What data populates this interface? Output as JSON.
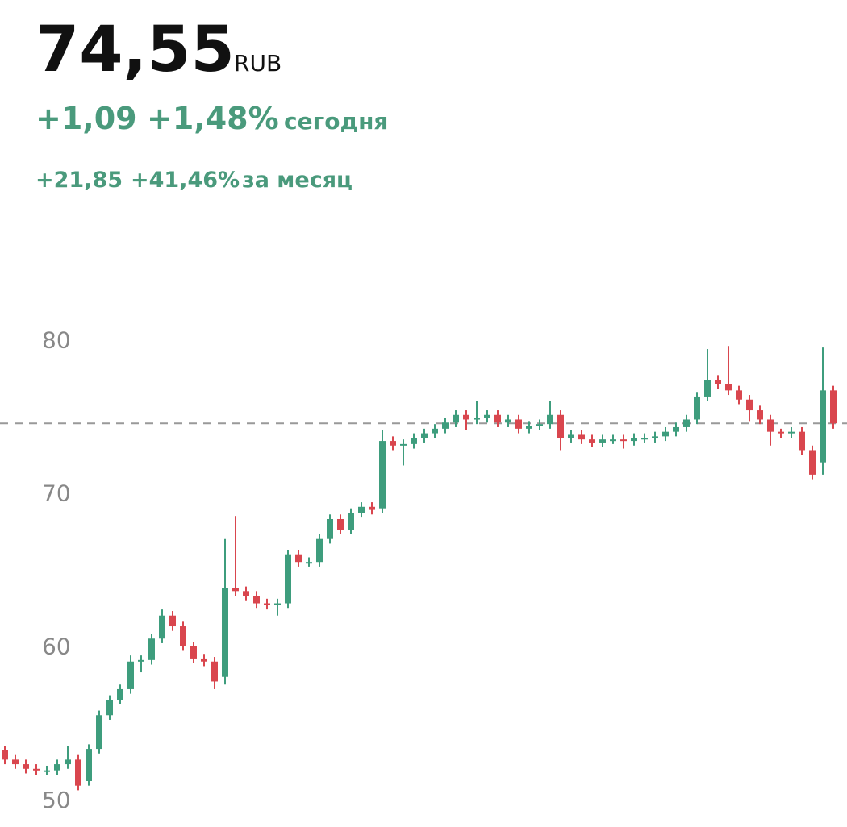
{
  "header": {
    "price": "74,55",
    "currency": "RUB",
    "day_change": "+1,09",
    "day_change_pct": "+1,48%",
    "day_label": "сегодня",
    "month_change": "+21,85",
    "month_change_pct": "+41,46%",
    "month_label": "за месяц"
  },
  "chart_data": {
    "type": "candlestick",
    "ylim": [
      48.2,
      86.4
    ],
    "yticks": [
      50,
      60,
      70,
      80
    ],
    "ref_line": 74.55,
    "up_color": "#3e9d7d",
    "down_color": "#d9464e",
    "open": [
      53.2,
      52.6,
      52.3,
      52.0,
      51.9,
      51.9,
      52.3,
      52.6,
      51.2,
      53.3,
      55.5,
      56.5,
      57.2,
      59.0,
      59.1,
      60.5,
      62.0,
      61.3,
      60.0,
      59.2,
      59.0,
      58.0,
      63.8,
      63.6,
      63.3,
      62.8,
      62.7,
      62.8,
      66.0,
      65.5,
      65.5,
      67.0,
      68.3,
      67.6,
      68.7,
      69.1,
      69.0,
      73.4,
      73.1,
      73.2,
      73.6,
      73.9,
      74.2,
      74.6,
      75.1,
      74.8,
      74.9,
      75.1,
      74.6,
      74.8,
      74.2,
      74.4,
      74.5,
      75.1,
      73.6,
      73.8,
      73.5,
      73.3,
      73.5,
      73.5,
      73.4,
      73.6,
      73.6,
      73.7,
      74.0,
      74.3,
      74.8,
      76.3,
      77.4,
      77.1,
      76.7,
      76.1,
      75.4,
      74.8,
      74.0,
      73.9,
      74.0,
      72.8,
      72.0,
      76.7
    ],
    "high": [
      53.5,
      52.9,
      52.6,
      52.3,
      52.2,
      52.6,
      53.5,
      52.9,
      53.6,
      55.8,
      56.8,
      57.5,
      59.4,
      59.4,
      60.8,
      62.4,
      62.3,
      61.6,
      60.3,
      59.5,
      59.3,
      67.0,
      68.5,
      63.9,
      63.6,
      63.1,
      63.1,
      66.3,
      66.3,
      65.8,
      67.3,
      68.6,
      68.6,
      69.0,
      69.4,
      69.4,
      74.1,
      73.7,
      73.5,
      73.9,
      74.2,
      74.5,
      74.9,
      75.4,
      75.4,
      76.0,
      75.4,
      75.4,
      75.1,
      75.1,
      74.7,
      74.8,
      76.0,
      75.4,
      74.1,
      74.1,
      73.8,
      73.8,
      73.8,
      73.8,
      73.9,
      73.9,
      74.0,
      74.3,
      74.6,
      75.1,
      76.6,
      79.4,
      77.7,
      79.6,
      77.0,
      76.4,
      75.7,
      75.1,
      74.2,
      74.3,
      74.3,
      73.1,
      79.5,
      77.0
    ],
    "low": [
      52.3,
      52.0,
      51.7,
      51.6,
      51.6,
      51.6,
      52.0,
      50.6,
      50.9,
      53.0,
      55.2,
      56.2,
      56.9,
      58.3,
      58.8,
      60.2,
      61.0,
      59.7,
      58.9,
      58.7,
      57.2,
      57.5,
      63.3,
      63.0,
      62.5,
      62.4,
      62.0,
      62.5,
      65.2,
      65.2,
      65.2,
      66.7,
      67.3,
      67.3,
      68.4,
      68.6,
      68.7,
      72.8,
      71.8,
      72.9,
      73.3,
      73.6,
      73.9,
      74.3,
      74.1,
      74.5,
      74.6,
      74.3,
      74.3,
      73.9,
      73.9,
      74.1,
      74.2,
      72.8,
      73.3,
      73.2,
      73.0,
      73.0,
      73.2,
      72.9,
      73.1,
      73.3,
      73.3,
      73.4,
      73.7,
      74.0,
      74.5,
      76.0,
      76.8,
      76.4,
      75.8,
      74.7,
      74.5,
      73.1,
      73.6,
      73.6,
      72.5,
      70.9,
      71.2,
      74.2
    ],
    "close": [
      52.6,
      52.3,
      52.0,
      51.9,
      51.9,
      52.3,
      52.6,
      50.9,
      53.3,
      55.5,
      56.5,
      57.2,
      59.0,
      59.1,
      60.5,
      62.0,
      61.3,
      60.0,
      59.2,
      59.0,
      57.7,
      63.8,
      63.6,
      63.3,
      62.8,
      62.7,
      62.8,
      66.0,
      65.5,
      65.5,
      67.0,
      68.3,
      67.6,
      68.7,
      69.1,
      68.9,
      73.4,
      73.1,
      73.2,
      73.6,
      73.9,
      74.2,
      74.6,
      75.1,
      74.8,
      74.9,
      75.1,
      74.6,
      74.8,
      74.2,
      74.4,
      74.5,
      75.1,
      73.6,
      73.8,
      73.5,
      73.3,
      73.5,
      73.5,
      73.4,
      73.6,
      73.6,
      73.7,
      74.0,
      74.3,
      74.8,
      76.3,
      77.4,
      77.1,
      76.7,
      76.1,
      75.4,
      74.8,
      74.0,
      73.9,
      74.0,
      72.8,
      71.2,
      76.7,
      74.55
    ]
  }
}
